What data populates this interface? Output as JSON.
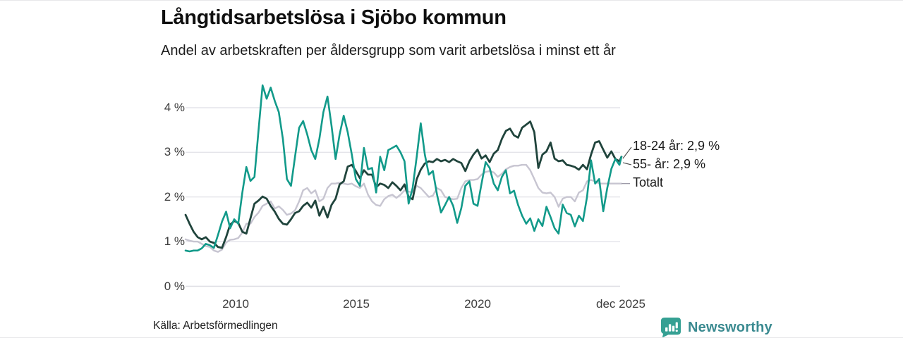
{
  "header": {
    "title": "Långtidsarbetslösa i Sjöbo kommun",
    "subtitle": "Andel av arbetskraften per åldersgrupp som varit arbetslösa i minst ett år"
  },
  "source": {
    "label": "Källa: Arbetsförmedlingen"
  },
  "branding": {
    "name": "Newsworthy",
    "icon": "newsworthy-bar-chart-bubble-icon",
    "wordmark_color": "#3a8a90",
    "icon_bg_color": "#35a093"
  },
  "chart_data": {
    "type": "line",
    "title": "Långtidsarbetslösa i Sjöbo kommun",
    "subtitle": "Andel av arbetskraften per åldersgrupp som varit arbetslösa i minst ett år",
    "unit": "%",
    "grid": true,
    "legend_position": "right-of-line-ends",
    "x_axis": {
      "start_year": 2008,
      "end_point": "dec 2025",
      "sample_step_months": 2,
      "ticks": [
        "2010",
        "2015",
        "2020",
        "dec 2025"
      ]
    },
    "y_axis": {
      "min": 0,
      "max": 4.6,
      "ticks": [
        "0 %",
        "1 %",
        "2 %",
        "3 %",
        "4 %"
      ]
    },
    "colors": {
      "grid_line": "#e4e4ea",
      "zero_line": "#dcdce2",
      "connector": "#4a4a4a"
    },
    "series": [
      {
        "name": "18-24 år",
        "label": "18-24 år: 2,9 %",
        "last_value": "2,9 %",
        "color": "#129a8a",
        "width": 2.6,
        "values": [
          0.8,
          0.78,
          0.8,
          0.8,
          0.85,
          0.95,
          0.92,
          0.86,
          1.15,
          1.45,
          1.67,
          1.3,
          1.5,
          1.4,
          2.1,
          2.67,
          2.36,
          2.45,
          3.5,
          4.5,
          4.2,
          4.45,
          4.15,
          3.9,
          3.3,
          2.4,
          2.25,
          2.9,
          3.55,
          3.7,
          3.4,
          3.05,
          2.85,
          3.3,
          3.9,
          4.25,
          3.6,
          2.85,
          3.4,
          3.82,
          3.45,
          2.95,
          2.4,
          2.25,
          3.1,
          2.62,
          2.65,
          2.1,
          2.9,
          2.6,
          3.05,
          3.1,
          3.15,
          3.0,
          2.8,
          1.85,
          2.2,
          2.9,
          3.65,
          2.95,
          2.5,
          2.58,
          2.06,
          1.65,
          1.82,
          2.0,
          1.8,
          1.42,
          1.75,
          2.25,
          2.35,
          1.85,
          1.8,
          2.3,
          2.78,
          2.65,
          2.3,
          2.15,
          2.45,
          2.6,
          2.08,
          2.14,
          1.82,
          1.58,
          1.4,
          1.52,
          1.24,
          1.5,
          1.35,
          1.78,
          1.55,
          1.3,
          1.18,
          1.83,
          1.64,
          1.6,
          1.34,
          1.58,
          1.46,
          2.0,
          2.82,
          2.3,
          2.4,
          1.68,
          2.2,
          2.63,
          2.85,
          2.72,
          2.9
        ]
      },
      {
        "name": "55- år",
        "label": "55- år: 2,9 %",
        "last_value": "2,9 %",
        "color": "#20443c",
        "width": 2.8,
        "values": [
          1.6,
          1.4,
          1.22,
          1.1,
          1.05,
          1.1,
          1.0,
          0.97,
          0.88,
          0.86,
          1.1,
          1.38,
          1.46,
          1.42,
          1.22,
          1.18,
          1.52,
          1.85,
          1.92,
          2.01,
          1.96,
          1.8,
          1.67,
          1.51,
          1.4,
          1.38,
          1.5,
          1.64,
          1.68,
          1.8,
          1.87,
          1.76,
          1.92,
          1.58,
          1.78,
          1.54,
          1.82,
          1.96,
          2.28,
          2.35,
          2.68,
          2.72,
          2.58,
          2.42,
          2.6,
          2.5,
          2.5,
          2.22,
          2.3,
          2.27,
          2.2,
          2.33,
          2.25,
          2.15,
          2.28,
          2.0,
          1.95,
          2.4,
          2.61,
          2.75,
          2.8,
          2.78,
          2.85,
          2.8,
          2.83,
          2.78,
          2.85,
          2.8,
          2.76,
          2.58,
          2.8,
          2.95,
          3.06,
          2.86,
          2.93,
          2.78,
          2.97,
          3.05,
          3.3,
          3.48,
          3.53,
          3.38,
          3.33,
          3.55,
          3.62,
          3.69,
          3.45,
          2.65,
          2.95,
          3.02,
          3.22,
          2.86,
          2.8,
          2.82,
          2.72,
          2.7,
          2.67,
          2.61,
          2.72,
          2.62,
          2.95,
          3.22,
          3.25,
          3.06,
          2.88,
          3.02,
          2.85,
          2.8,
          2.9
        ]
      },
      {
        "name": "Totalt",
        "label": "Totalt",
        "last_value": "2,3 %",
        "color": "#c7c5d1",
        "width": 2.4,
        "values": [
          1.05,
          1.02,
          1.0,
          1.0,
          0.95,
          0.9,
          0.88,
          0.8,
          0.77,
          0.82,
          0.98,
          1.04,
          1.05,
          1.08,
          1.2,
          1.4,
          1.4,
          1.55,
          1.65,
          1.8,
          1.85,
          1.9,
          1.74,
          1.79,
          1.71,
          1.6,
          1.63,
          1.7,
          1.9,
          2.15,
          2.2,
          2.08,
          2.15,
          1.9,
          1.96,
          2.2,
          2.3,
          2.3,
          2.32,
          2.3,
          2.28,
          2.3,
          2.24,
          2.2,
          2.3,
          2.05,
          1.9,
          1.82,
          1.8,
          1.95,
          2.02,
          2.05,
          1.98,
          2.05,
          2.15,
          2.12,
          2.1,
          2.25,
          2.2,
          2.1,
          2.0,
          2.03,
          2.2,
          2.15,
          2.0,
          1.97,
          1.95,
          1.96,
          2.2,
          2.35,
          2.38,
          2.38,
          2.4,
          2.5,
          2.56,
          2.58,
          2.55,
          2.45,
          2.52,
          2.62,
          2.67,
          2.7,
          2.7,
          2.72,
          2.72,
          2.6,
          2.4,
          2.2,
          2.1,
          2.08,
          2.1,
          2.0,
          1.78,
          1.96,
          2.0,
          2.0,
          1.9,
          2.1,
          2.15,
          2.35,
          2.38,
          2.35,
          2.3,
          2.3,
          2.3,
          2.3,
          2.3,
          2.3,
          2.3
        ]
      }
    ]
  }
}
